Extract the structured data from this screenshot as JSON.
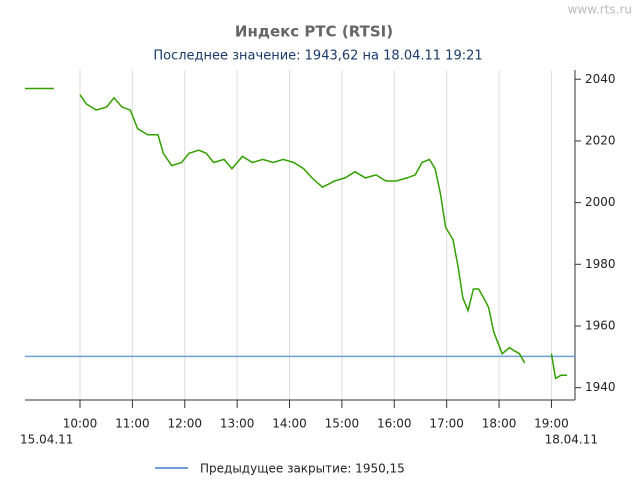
{
  "chart_data": {
    "type": "line",
    "title": "Индекс РТС (RTSI)",
    "subtitle": "Последнее значение: 1943,62 на 18.04.11 19:21",
    "watermark": "www.rts.ru",
    "x_start_label": "15.04.11",
    "x_end_label": "18.04.11",
    "series": [
      {
        "name": "RTSI",
        "color": "#33a000",
        "x": [
          8.95,
          9.3,
          9.5,
          null,
          10.0,
          10.12,
          10.31,
          10.51,
          10.65,
          10.8,
          10.96,
          11.1,
          11.29,
          11.49,
          11.59,
          11.75,
          11.94,
          12.08,
          12.27,
          12.41,
          12.55,
          12.75,
          12.9,
          13.1,
          13.29,
          13.49,
          13.69,
          13.88,
          14.08,
          14.27,
          14.43,
          14.63,
          14.86,
          15.06,
          15.25,
          15.45,
          15.65,
          15.84,
          16.04,
          16.24,
          16.4,
          16.53,
          16.67,
          16.78,
          16.88,
          16.98,
          17.12,
          17.22,
          17.31,
          17.41,
          17.51,
          17.61,
          17.71,
          17.8,
          17.9,
          18.06,
          18.2,
          18.29,
          18.39,
          18.49,
          null,
          19.0,
          19.08,
          19.18,
          19.3
        ],
        "values": [
          2037,
          2037,
          2037,
          null,
          2035,
          2032,
          2030,
          2031,
          2034,
          2031,
          2030,
          2024,
          2022,
          2022,
          2016,
          2012,
          2013,
          2016,
          2017,
          2016,
          2013,
          2014,
          2011,
          2015,
          2013,
          2014,
          2013,
          2014,
          2013,
          2011,
          2008,
          2005,
          2007,
          2008,
          2010,
          2008,
          2009,
          2007,
          2007,
          2008,
          2009,
          2013,
          2014,
          2011,
          2003,
          1992,
          1988,
          1979,
          1969,
          1965,
          1972,
          1972,
          1969,
          1966,
          1958,
          1951,
          1953,
          1952,
          1951,
          1948,
          null,
          1951,
          1943,
          1944,
          1944
        ]
      }
    ],
    "reference": {
      "value": 1950.15,
      "label": "Предыдущее закрытие: 1950,15",
      "color": "#6f9fd8"
    },
    "xlim": [
      8.95,
      19.45
    ],
    "xticks": [
      {
        "value": 10,
        "label": "10:00"
      },
      {
        "value": 11,
        "label": "11:00"
      },
      {
        "value": 12,
        "label": "12:00"
      },
      {
        "value": 13,
        "label": "13:00"
      },
      {
        "value": 14,
        "label": "14:00"
      },
      {
        "value": 15,
        "label": "15:00"
      },
      {
        "value": 16,
        "label": "16:00"
      },
      {
        "value": 17,
        "label": "17:00"
      },
      {
        "value": 18,
        "label": "18:00"
      },
      {
        "value": 19,
        "label": "19:00"
      }
    ],
    "ylim": [
      1936,
      2043
    ],
    "yticks": [
      1940,
      1960,
      1980,
      2000,
      2020,
      2040
    ],
    "grid": true
  }
}
